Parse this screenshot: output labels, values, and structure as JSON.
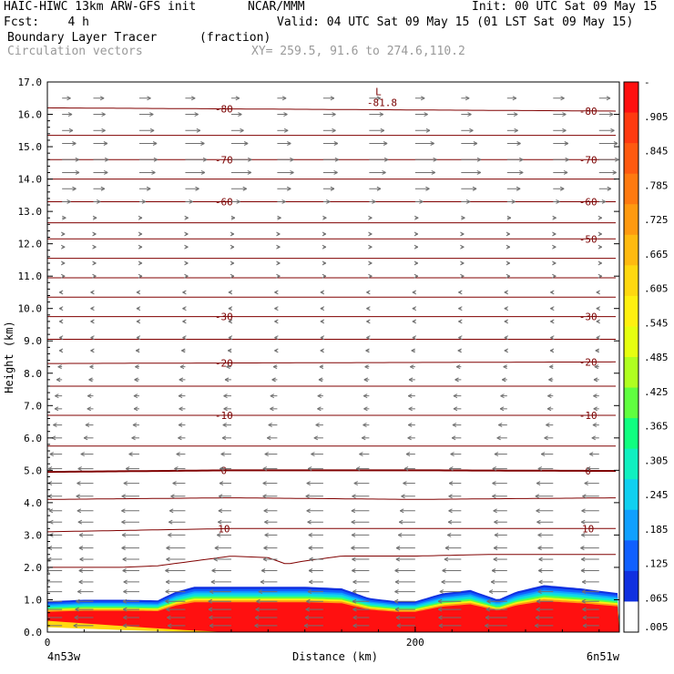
{
  "header": {
    "line1_left": "HAIC-HIWC 13km ARW-GFS init",
    "line1_mid": "NCAR/MMM",
    "line1_right": "Init: 00 UTC Sat 09 May 15",
    "line2_left": "Fcst:    4 h",
    "line2_right": "Valid: 04 UTC Sat 09 May 15 (01 LST Sat 09 May 15)",
    "line3_left": "Boundary Layer Tracer",
    "line3_mid": "(fraction)",
    "line4_left": "Circulation vectors",
    "line4_mid": "XY= 259.5, 91.6 to 274.6,110.2"
  },
  "chart_data": {
    "type": "heatmap",
    "title": "Boundary Layer Tracer",
    "units": "(fraction)",
    "xlabel": "Distance (km)",
    "ylabel": "Height (km)",
    "xlim": [
      0,
      311
    ],
    "ylim": [
      0,
      17
    ],
    "x_ticks": [
      0,
      200
    ],
    "x_end_labels": {
      "left": "4n53w",
      "right": "6n51w"
    },
    "y_ticks": [
      "0.0",
      "1.0",
      "2.0",
      "3.0",
      "4.0",
      "5.0",
      "6.0",
      "7.0",
      "8.0",
      "9.0",
      "10.0",
      "11.0",
      "12.0",
      "13.0",
      "14.0",
      "15.0",
      "16.0",
      "17.0"
    ],
    "colorbar": {
      "labels": [
        "-",
        ".905",
        ".845",
        ".785",
        ".725",
        ".665",
        ".605",
        ".545",
        ".485",
        ".425",
        ".365",
        ".305",
        ".245",
        ".185",
        ".125",
        ".065",
        ".005"
      ],
      "colors": [
        "#ff1010",
        "#ff3a10",
        "#ff5a10",
        "#ff7a10",
        "#ff9a10",
        "#ffba10",
        "#ffd810",
        "#fff010",
        "#e6ff10",
        "#b0ff20",
        "#60ff40",
        "#10ff80",
        "#10f0c0",
        "#10d0f0",
        "#10a0ff",
        "#1060ff",
        "#1030e0",
        "#ffffff"
      ]
    },
    "tracer_top_km": [
      [
        0,
        0.95
      ],
      [
        20,
        1.0
      ],
      [
        40,
        1.0
      ],
      [
        60,
        0.98
      ],
      [
        70,
        1.25
      ],
      [
        80,
        1.4
      ],
      [
        100,
        1.4
      ],
      [
        120,
        1.4
      ],
      [
        140,
        1.4
      ],
      [
        160,
        1.35
      ],
      [
        175,
        1.05
      ],
      [
        190,
        0.95
      ],
      [
        200,
        0.95
      ],
      [
        215,
        1.2
      ],
      [
        230,
        1.3
      ],
      [
        240,
        1.1
      ],
      [
        245,
        1.0
      ],
      [
        255,
        1.25
      ],
      [
        270,
        1.45
      ],
      [
        290,
        1.35
      ],
      [
        311,
        1.2
      ]
    ],
    "contour_lines": [
      {
        "level": "",
        "heights_km": [
          [
            0,
            2.0
          ],
          [
            40,
            2.0
          ],
          [
            60,
            2.05
          ],
          [
            80,
            2.2
          ],
          [
            100,
            2.35
          ],
          [
            120,
            2.3
          ],
          [
            130,
            2.1
          ],
          [
            140,
            2.2
          ],
          [
            160,
            2.35
          ],
          [
            200,
            2.35
          ],
          [
            240,
            2.4
          ],
          [
            280,
            2.4
          ],
          [
            311,
            2.4
          ]
        ]
      },
      {
        "level": "10",
        "heights_km": [
          [
            0,
            3.1
          ],
          [
            100,
            3.2
          ],
          [
            200,
            3.2
          ],
          [
            311,
            3.2
          ]
        ],
        "label_x": [
          96,
          294
        ]
      },
      {
        "level": "",
        "heights_km": [
          [
            0,
            4.1
          ],
          [
            100,
            4.15
          ],
          [
            200,
            4.1
          ],
          [
            311,
            4.15
          ]
        ]
      },
      {
        "level": "0",
        "heights_km": [
          [
            0,
            4.95
          ],
          [
            100,
            5.0
          ],
          [
            200,
            5.0
          ],
          [
            311,
            4.98
          ]
        ],
        "label_x": [
          96,
          294
        ]
      },
      {
        "level": "",
        "heights_km": [
          [
            0,
            5.75
          ],
          [
            311,
            5.75
          ]
        ]
      },
      {
        "level": "-10",
        "heights_km": [
          [
            0,
            6.7
          ],
          [
            311,
            6.7
          ]
        ],
        "label_x": [
          96,
          294
        ]
      },
      {
        "level": "",
        "heights_km": [
          [
            0,
            7.6
          ],
          [
            311,
            7.6
          ]
        ]
      },
      {
        "level": "-20",
        "heights_km": [
          [
            0,
            8.3
          ],
          [
            311,
            8.35
          ]
        ],
        "label_x": [
          96,
          294
        ]
      },
      {
        "level": "",
        "heights_km": [
          [
            0,
            9.05
          ],
          [
            311,
            9.05
          ]
        ]
      },
      {
        "level": "-30",
        "heights_km": [
          [
            0,
            9.75
          ],
          [
            311,
            9.75
          ]
        ],
        "label_x": [
          96,
          294
        ]
      },
      {
        "level": "",
        "heights_km": [
          [
            0,
            10.35
          ],
          [
            311,
            10.35
          ]
        ]
      },
      {
        "level": "",
        "heights_km": [
          [
            0,
            10.95
          ],
          [
            311,
            10.95
          ]
        ]
      },
      {
        "level": "",
        "heights_km": [
          [
            0,
            11.55
          ],
          [
            311,
            11.55
          ]
        ]
      },
      {
        "level": "-50",
        "heights_km": [
          [
            0,
            12.15
          ],
          [
            311,
            12.15
          ]
        ],
        "label_x": [
          294
        ]
      },
      {
        "level": "",
        "heights_km": [
          [
            0,
            12.65
          ],
          [
            311,
            12.65
          ]
        ]
      },
      {
        "level": "-60",
        "heights_km": [
          [
            0,
            13.3
          ],
          [
            311,
            13.3
          ]
        ],
        "label_x": [
          96,
          294
        ]
      },
      {
        "level": "",
        "heights_km": [
          [
            0,
            14.0
          ],
          [
            311,
            14.0
          ]
        ]
      },
      {
        "level": "-70",
        "heights_km": [
          [
            0,
            14.6
          ],
          [
            311,
            14.6
          ]
        ],
        "label_x": [
          96,
          294
        ]
      },
      {
        "level": "",
        "heights_km": [
          [
            0,
            15.35
          ],
          [
            311,
            15.35
          ]
        ]
      },
      {
        "level": "-80",
        "heights_km": [
          [
            0,
            16.2
          ],
          [
            311,
            16.1
          ]
        ],
        "label_x": [
          96,
          294
        ]
      }
    ],
    "minimum_marker": {
      "letter": "L",
      "value": "-81.8",
      "x_km": 180,
      "y_km": 16.7
    },
    "vectors": {
      "x_columns_km": [
        8,
        25,
        50,
        75,
        100,
        125,
        150,
        175,
        200,
        225,
        250,
        275,
        300
      ],
      "levels_km": [
        {
          "y": 0.2,
          "u": -0.9
        },
        {
          "y": 0.45,
          "u": -0.9
        },
        {
          "y": 0.7,
          "u": -0.9
        },
        {
          "y": 0.95,
          "u": -0.9
        },
        {
          "y": 1.25,
          "u": -0.85
        },
        {
          "y": 1.55,
          "u": -0.8
        },
        {
          "y": 1.9,
          "u": -0.8
        },
        {
          "y": 2.25,
          "u": -0.75
        },
        {
          "y": 2.6,
          "u": -0.75
        },
        {
          "y": 3.0,
          "u": -0.7
        },
        {
          "y": 3.4,
          "u": -0.7
        },
        {
          "y": 3.75,
          "u": -0.7
        },
        {
          "y": 4.2,
          "u": -0.7
        },
        {
          "y": 4.6,
          "u": -0.65
        },
        {
          "y": 5.05,
          "u": -0.6
        },
        {
          "y": 5.5,
          "u": -0.5
        },
        {
          "y": 6.0,
          "u": -0.4
        },
        {
          "y": 6.4,
          "u": -0.35
        },
        {
          "y": 6.9,
          "u": -0.3
        },
        {
          "y": 7.3,
          "u": -0.3
        },
        {
          "y": 7.8,
          "u": -0.25
        },
        {
          "y": 8.2,
          "u": -0.2
        },
        {
          "y": 8.7,
          "u": -0.15
        },
        {
          "y": 9.1,
          "u": -0.1
        },
        {
          "y": 9.6,
          "u": -0.1
        },
        {
          "y": 10.0,
          "u": -0.1
        },
        {
          "y": 10.5,
          "u": -0.1
        },
        {
          "y": 11.0,
          "u": 0.05
        },
        {
          "y": 11.4,
          "u": 0.05
        },
        {
          "y": 11.9,
          "u": 0.1
        },
        {
          "y": 12.3,
          "u": 0.1
        },
        {
          "y": 12.8,
          "u": 0.15
        },
        {
          "y": 13.3,
          "u": 0.35
        },
        {
          "y": 13.7,
          "u": 0.6
        },
        {
          "y": 14.2,
          "u": 0.8
        },
        {
          "y": 14.6,
          "u": 0.85
        },
        {
          "y": 15.1,
          "u": 0.75
        },
        {
          "y": 15.5,
          "u": 0.6
        },
        {
          "y": 16.0,
          "u": 0.55
        },
        {
          "y": 16.5,
          "u": 0.45
        }
      ]
    }
  }
}
